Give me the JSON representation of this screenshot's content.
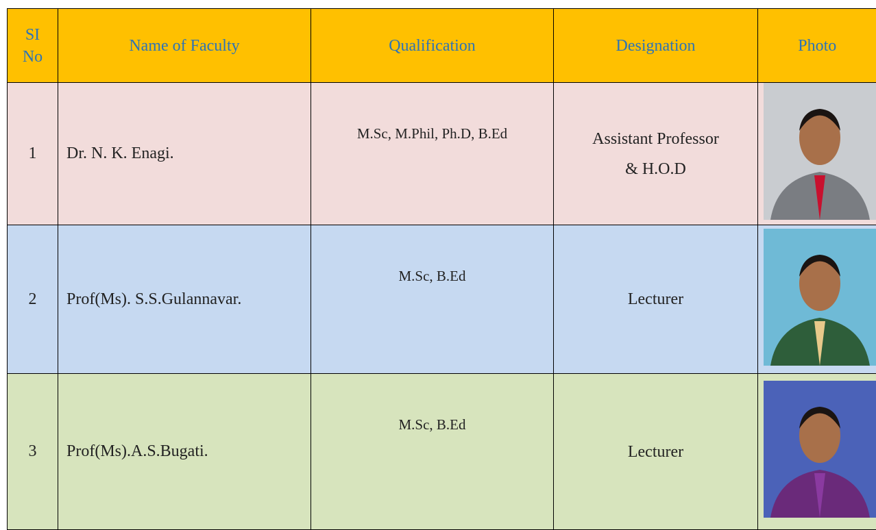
{
  "table": {
    "header": [
      "SI No",
      "Name of Faculty",
      "Qualification",
      "Designation",
      "Photo"
    ],
    "rows": [
      {
        "sl": "1",
        "name": "Dr. N. K. Enagi.",
        "qualification": "M.Sc, M.Phil, Ph.D, B.Ed",
        "designation": [
          "Assistant Professor",
          "& H.O.D"
        ]
      },
      {
        "sl": "2",
        "name": "Prof(Ms). S.S.Gulannavar.",
        "qualification": "M.Sc, B.Ed",
        "designation": [
          "Lecturer"
        ]
      },
      {
        "sl": "3",
        "name": "Prof(Ms).A.S.Bugati.",
        "qualification": "M.Sc, B.Ed",
        "designation": [
          "Lecturer"
        ]
      }
    ]
  }
}
